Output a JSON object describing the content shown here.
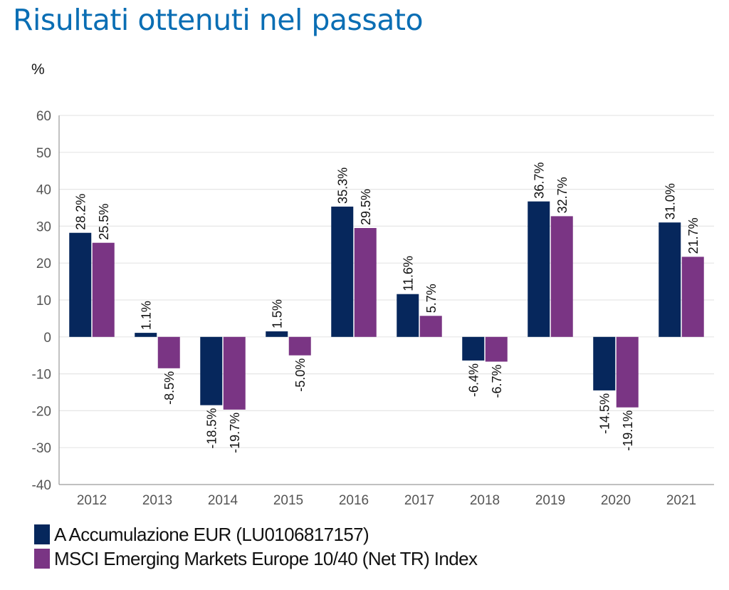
{
  "header": {
    "title": "Risultati ottenuti nel passato",
    "unit_label": "%"
  },
  "colors": {
    "title": "#0a6eb4",
    "series_fund": "#06275c",
    "series_index": "#7a3584",
    "grid": "#e6e6e6",
    "axis": "#9a9a9a",
    "tick_text": "#555555",
    "label_text": "#111111"
  },
  "legend": {
    "items": [
      {
        "label": "A Accumulazione EUR (LU0106817157)",
        "color": "#06275c"
      },
      {
        "label": "MSCI Emerging Markets Europe 10/40 (Net TR) Index",
        "color": "#7a3584"
      }
    ]
  },
  "chart_data": {
    "type": "bar",
    "title": "Risultati ottenuti nel passato",
    "xlabel": "",
    "ylabel": "%",
    "ylim": [
      -40,
      60
    ],
    "yticks": [
      60,
      50,
      40,
      30,
      20,
      10,
      0,
      -10,
      -20,
      -30,
      -40
    ],
    "grid": true,
    "legend_position": "bottom-left",
    "categories": [
      "2012",
      "2013",
      "2014",
      "2015",
      "2016",
      "2017",
      "2018",
      "2019",
      "2020",
      "2021"
    ],
    "series": [
      {
        "name": "A Accumulazione EUR (LU0106817157)",
        "color": "#06275c",
        "values": [
          28.2,
          1.1,
          -18.5,
          1.5,
          35.3,
          11.6,
          -6.4,
          36.7,
          -14.5,
          31.0
        ],
        "labels": [
          "28.2%",
          "1.1%",
          "-18.5%",
          "1.5%",
          "35.3%",
          "11.6%",
          "-6.4%",
          "36.7%",
          "-14.5%",
          "31.0%"
        ]
      },
      {
        "name": "MSCI Emerging Markets Europe 10/40 (Net TR) Index",
        "color": "#7a3584",
        "values": [
          25.5,
          -8.5,
          -19.7,
          -5.0,
          29.5,
          5.7,
          -6.7,
          32.7,
          -19.1,
          21.7
        ],
        "labels": [
          "25.5%",
          "-8.5%",
          "-19.7%",
          "-5.0%",
          "29.5%",
          "5.7%",
          "-6.7%",
          "32.7%",
          "-19.1%",
          "21.7%"
        ]
      }
    ]
  }
}
